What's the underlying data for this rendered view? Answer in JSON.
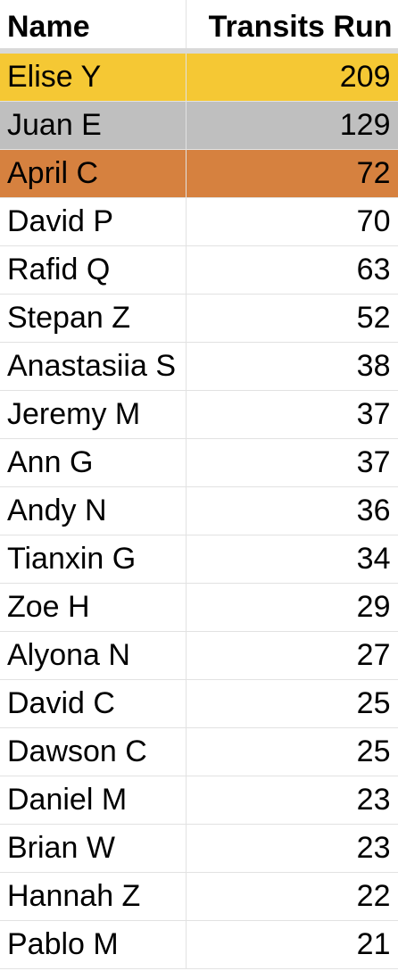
{
  "header": {
    "name_label": "Name",
    "runs_label": "Transits Run"
  },
  "colors": {
    "gold": "#f5c834",
    "silver": "#bfbfbf",
    "bronze": "#d6813f"
  },
  "rows": [
    {
      "name": "Elise Y",
      "runs": "209",
      "medal": "gold"
    },
    {
      "name": "Juan E",
      "runs": "129",
      "medal": "silver"
    },
    {
      "name": "April C",
      "runs": "72",
      "medal": "bronze"
    },
    {
      "name": "David P",
      "runs": "70",
      "medal": ""
    },
    {
      "name": "Rafid Q",
      "runs": "63",
      "medal": ""
    },
    {
      "name": "Stepan Z",
      "runs": "52",
      "medal": ""
    },
    {
      "name": "Anastasiia S",
      "runs": "38",
      "medal": ""
    },
    {
      "name": "Jeremy M",
      "runs": "37",
      "medal": ""
    },
    {
      "name": "Ann G",
      "runs": "37",
      "medal": ""
    },
    {
      "name": "Andy N",
      "runs": "36",
      "medal": ""
    },
    {
      "name": "Tianxin G",
      "runs": "34",
      "medal": ""
    },
    {
      "name": "Zoe H",
      "runs": "29",
      "medal": ""
    },
    {
      "name": "Alyona N",
      "runs": "27",
      "medal": ""
    },
    {
      "name": "David C",
      "runs": "25",
      "medal": ""
    },
    {
      "name": "Dawson C",
      "runs": "25",
      "medal": ""
    },
    {
      "name": "Daniel M",
      "runs": "23",
      "medal": ""
    },
    {
      "name": "Brian W",
      "runs": "23",
      "medal": ""
    },
    {
      "name": "Hannah Z",
      "runs": "22",
      "medal": ""
    },
    {
      "name": "Pablo M",
      "runs": "21",
      "medal": ""
    }
  ]
}
